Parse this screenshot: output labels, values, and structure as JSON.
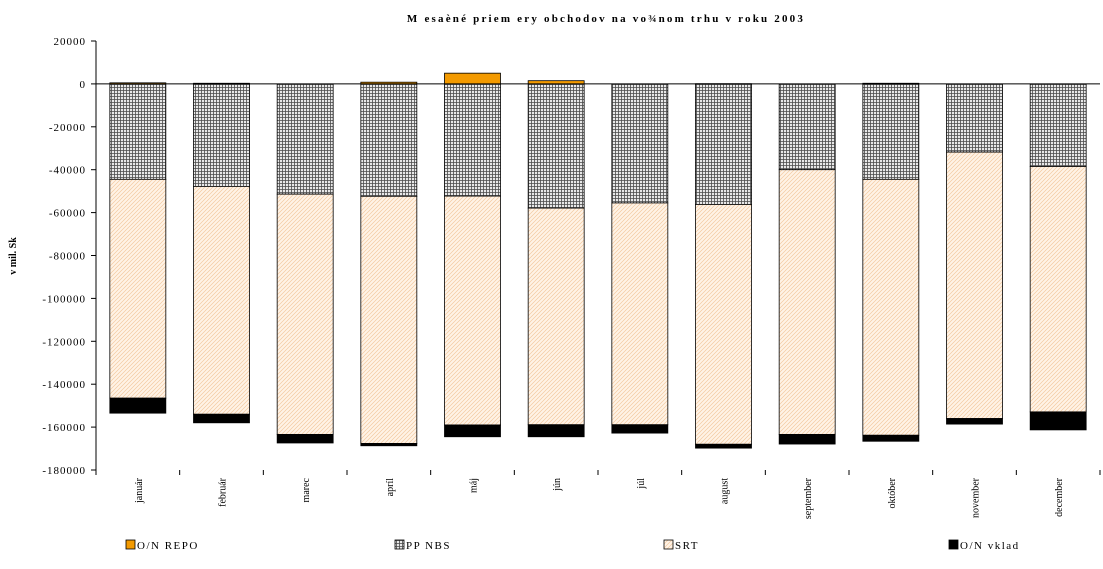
{
  "chart_data": {
    "type": "bar",
    "stacked": true,
    "title": "M esaèné priem ery obchodov na vo¾nom trhu v roku 2003",
    "xlabel": "",
    "ylabel": "v mil. Sk",
    "ylim": [
      -180000,
      20000
    ],
    "yticks": [
      20000,
      0,
      -20000,
      -40000,
      -60000,
      -80000,
      -100000,
      -120000,
      -140000,
      -160000,
      -180000
    ],
    "ytick_labels": [
      "20000",
      "0",
      "-20000",
      "-40000",
      "-60000",
      "-80000",
      "-100000",
      "-120000",
      "-140000",
      "-160000",
      "-180000"
    ],
    "grid": false,
    "legend_position": "bottom",
    "categories": [
      "január",
      "február",
      "marec",
      "apríl",
      "máj",
      "jún",
      "júl",
      "august",
      "september",
      "október",
      "november",
      "december"
    ],
    "series": [
      {
        "name": "O/N REPO",
        "color": "#f39a00",
        "pattern": "solid",
        "values": [
          500,
          300,
          0,
          800,
          5000,
          1500,
          0,
          100,
          0,
          300,
          0,
          0
        ]
      },
      {
        "name": "PP NBS",
        "color": "#a0a0a0",
        "pattern": "grid",
        "values": [
          -44500,
          -47800,
          -51400,
          -52400,
          -52300,
          -57900,
          -55500,
          -56200,
          -40000,
          -44500,
          -31800,
          -38500
        ]
      },
      {
        "name": "SRT",
        "color": "#fdefe0",
        "pattern": "hatch",
        "values": [
          -102000,
          -106200,
          -112000,
          -115200,
          -106700,
          -101000,
          -103400,
          -111800,
          -123400,
          -119300,
          -124200,
          -114400
        ]
      },
      {
        "name": "O/N vklad",
        "color": "#000000",
        "pattern": "solid",
        "values": [
          -7000,
          -4000,
          -4000,
          -1100,
          -5500,
          -5600,
          -3900,
          -1800,
          -4500,
          -2800,
          -2600,
          -8400
        ]
      }
    ]
  }
}
